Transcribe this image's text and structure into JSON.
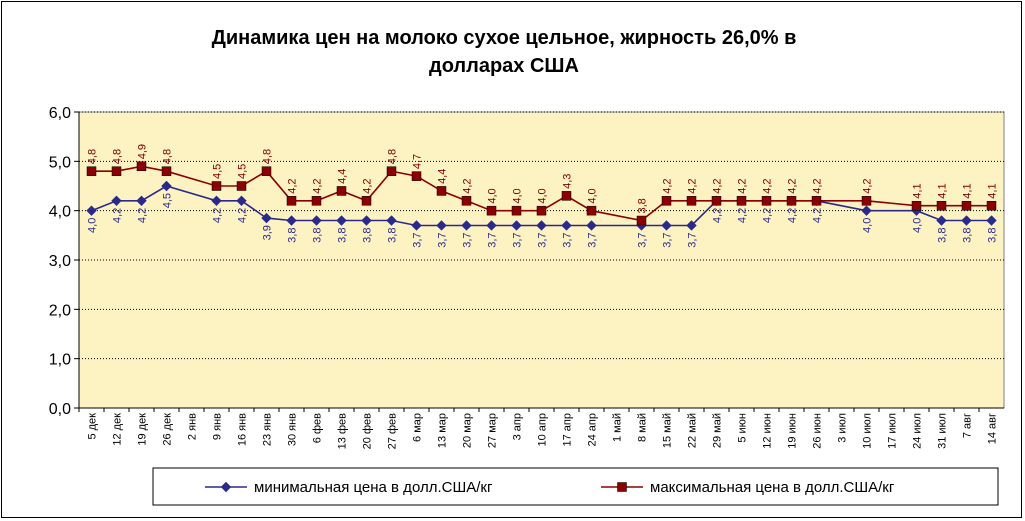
{
  "chart_data": {
    "type": "line",
    "title_line1": "Динамика цен на молоко сухое цельное, жирность 26,0%  в",
    "title_line2": "долларах  США",
    "ylim": [
      0,
      6
    ],
    "yticks": [
      "0,0",
      "1,0",
      "2,0",
      "3,0",
      "4,0",
      "5,0",
      "6,0"
    ],
    "grid": true,
    "legend_position": "bottom",
    "colors": {
      "min": "#2a2a8c",
      "max": "#8b0000",
      "plot_bg": "#fdf2c2"
    },
    "categories": [
      "5 дек",
      "12 дек",
      "19 дек",
      "26 дек",
      "2 янв",
      "9 янв",
      "16 янв",
      "23 янв",
      "30 янв",
      "6 фев",
      "13 фев",
      "20 фев",
      "27 фев",
      "6 мар",
      "13 мар",
      "20 мар",
      "27 мар",
      "3 апр",
      "10 апр",
      "17 апр",
      "24 апр",
      "1 май",
      "8 май",
      "15 май",
      "22 май",
      "29 май",
      "5 июн",
      "12 июн",
      "19 июн",
      "26 июн",
      "3 июл",
      "10 июл",
      "17 июл",
      "24 июл",
      "31 июл",
      "7 авг",
      "14 авг"
    ],
    "series": [
      {
        "name": "минимальная цена в долл.США/кг",
        "values": [
          4.0,
          4.2,
          4.2,
          4.5,
          null,
          4.2,
          4.2,
          3.85,
          3.8,
          3.8,
          3.8,
          3.8,
          3.8,
          3.7,
          3.7,
          3.7,
          3.7,
          3.7,
          3.7,
          3.7,
          3.7,
          null,
          3.7,
          3.7,
          3.7,
          4.2,
          4.2,
          4.2,
          4.2,
          4.2,
          null,
          4.0,
          null,
          4.0,
          3.8,
          3.8,
          3.8
        ],
        "labels": [
          "4,0",
          "4,2",
          "4,2",
          "4,5",
          "",
          "4,2",
          "4,2",
          "3,9",
          "3,8",
          "3,8",
          "3,8",
          "3,8",
          "3,8",
          "3,7",
          "3,7",
          "3,7",
          "3,7",
          "3,7",
          "3,7",
          "3,7",
          "3,7",
          "",
          "3,7",
          "3,7",
          "3,7",
          "4,2",
          "4,2",
          "4,2",
          "4,2",
          "4,2",
          "",
          "4,0",
          "",
          "4,0",
          "3,8",
          "3,8",
          "3,8"
        ]
      },
      {
        "name": "максимальная цена в долл.США/кг",
        "values": [
          4.8,
          4.8,
          4.9,
          4.8,
          null,
          4.5,
          4.5,
          4.8,
          4.2,
          4.2,
          4.4,
          4.2,
          4.8,
          4.7,
          4.4,
          4.2,
          4.0,
          4.0,
          4.0,
          4.3,
          4.0,
          null,
          3.8,
          4.2,
          4.2,
          4.2,
          4.2,
          4.2,
          4.2,
          4.2,
          null,
          4.2,
          null,
          4.1,
          4.1,
          4.1,
          4.1
        ],
        "labels": [
          "4,8",
          "4,8",
          "4,9",
          "4,8",
          "",
          "4,5",
          "4,5",
          "4,8",
          "4,2",
          "4,2",
          "4,4",
          "4,2",
          "4,8",
          "4,7",
          "4,4",
          "4,2",
          "4,0",
          "4,0",
          "4,0",
          "4,3",
          "4,0",
          "",
          "3,8",
          "4,2",
          "4,2",
          "4,2",
          "4,2",
          "4,2",
          "4,2",
          "4,2",
          "",
          "4,2",
          "",
          "4,1",
          "4,1",
          "4,1",
          "4,1"
        ]
      }
    ]
  }
}
